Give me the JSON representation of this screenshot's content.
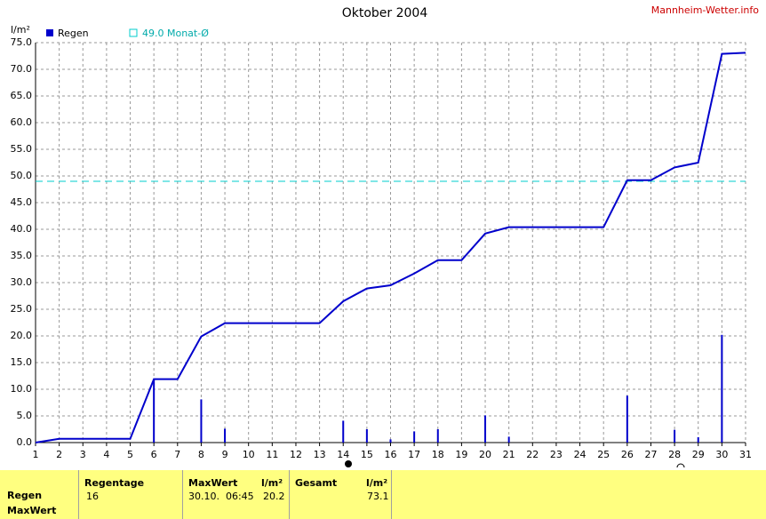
{
  "chart_data": {
    "type": "line",
    "title": "Oktober 2004",
    "source": "Mannheim-Wetter.info",
    "y_label": "l/m²",
    "xlim": [
      1,
      31
    ],
    "xticks": [
      1,
      2,
      3,
      4,
      5,
      6,
      7,
      8,
      9,
      10,
      11,
      12,
      13,
      14,
      15,
      16,
      17,
      18,
      19,
      20,
      21,
      22,
      23,
      24,
      25,
      26,
      27,
      28,
      29,
      30,
      31
    ],
    "ylim": [
      0,
      75
    ],
    "yticks": [
      {
        "value": 0,
        "label": "0.0"
      },
      {
        "value": 5,
        "label": "5.0"
      },
      {
        "value": 10,
        "label": "10.0"
      },
      {
        "value": 15,
        "label": "15.0"
      },
      {
        "value": 20,
        "label": "20.0"
      },
      {
        "value": 25,
        "label": "25.0"
      },
      {
        "value": 30,
        "label": "30.0"
      },
      {
        "value": 35,
        "label": "35.0"
      },
      {
        "value": 40,
        "label": "40.0"
      },
      {
        "value": 45,
        "label": "45.0"
      },
      {
        "value": 50,
        "label": "50.0"
      },
      {
        "value": 55,
        "label": "55.0"
      },
      {
        "value": 60,
        "label": "60.0"
      },
      {
        "value": 65,
        "label": "65.0"
      },
      {
        "value": 70,
        "label": "70.0"
      },
      {
        "value": 75,
        "label": "75.0"
      }
    ],
    "grid": true,
    "series": [
      {
        "name": "Regen",
        "type": "bar",
        "color": "#0000cc",
        "x": [
          6,
          8,
          9,
          14,
          15,
          16,
          17,
          18,
          20,
          21,
          26,
          28,
          29,
          30
        ],
        "values": [
          11.9,
          8.1,
          2.6,
          4.1,
          2.5,
          0.6,
          2.1,
          2.5,
          5.1,
          1.1,
          8.8,
          2.4,
          1.0,
          20.2
        ]
      },
      {
        "type": "line",
        "color": "#0000cc",
        "x": [
          1,
          2,
          3,
          4,
          5,
          6,
          7,
          8,
          9,
          10,
          11,
          12,
          13,
          14,
          15,
          16,
          17,
          18,
          19,
          20,
          21,
          22,
          23,
          24,
          25,
          26,
          27,
          28,
          29,
          30,
          31
        ],
        "values": [
          0,
          0.7,
          0.7,
          0.7,
          0.7,
          11.9,
          11.9,
          19.9,
          22.4,
          22.4,
          22.4,
          22.4,
          22.4,
          26.5,
          28.9,
          29.5,
          31.7,
          34.2,
          34.2,
          39.2,
          40.4,
          40.4,
          40.4,
          40.4,
          40.4,
          49.2,
          49.2,
          51.6,
          52.5,
          72.9,
          73.1
        ]
      }
    ],
    "reference_line": {
      "label": "49.0 Monat-Ø",
      "value": 49.0,
      "color": "#00cccc"
    }
  },
  "table": {
    "row_labels": [
      "Regen",
      "MaxWert"
    ],
    "regentage": {
      "header": "Regentage",
      "value": "16"
    },
    "maxwert": {
      "header": "MaxWert",
      "unit": "l/m²",
      "date": "30.10.  06:45",
      "value": "20.2"
    },
    "gesamt": {
      "header": "Gesamt",
      "unit": "l/m²",
      "value": "73.1"
    }
  }
}
